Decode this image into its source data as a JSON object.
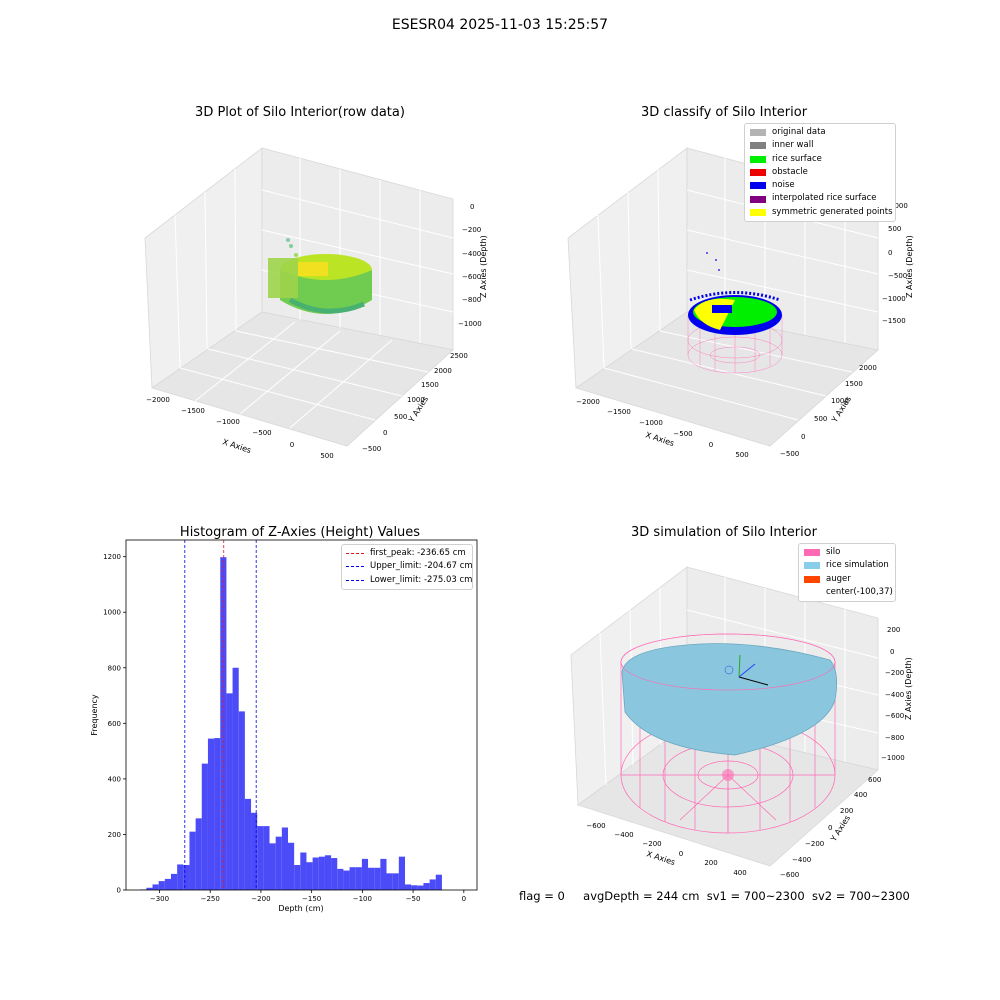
{
  "suptitle": "ESESR04 2025-11-03 15:25:57",
  "panels": {
    "raw": {
      "title": "3D Plot of Silo Interior(row data)",
      "xlabel": "X Axies",
      "ylabel": "Y Axies",
      "zlabel": "Z Axies (Depth)",
      "xticks": [
        "−2000",
        "−1500",
        "−1000",
        "−500",
        "0",
        "500"
      ],
      "yticks": [
        "−500",
        "0",
        "500",
        "1000",
        "1500",
        "2000",
        "2500"
      ],
      "zticks": [
        "0",
        "−200",
        "−400",
        "−600",
        "−800",
        "−1000"
      ]
    },
    "classify": {
      "title": "3D classify of Silo Interior",
      "xlabel": "X Axies",
      "ylabel": "Y Axies",
      "zlabel": "Z Axies (Depth)",
      "xticks": [
        "−2000",
        "−1500",
        "−1000",
        "−500",
        "0",
        "500"
      ],
      "yticks": [
        "−500",
        "0",
        "500",
        "1000",
        "1500",
        "2000"
      ],
      "zticks": [
        "1000",
        "500",
        "0",
        "−500",
        "−1000",
        "−1500"
      ],
      "legend": [
        {
          "label": "original data",
          "color": "#b3b3b3"
        },
        {
          "label": "inner wall",
          "color": "#808080"
        },
        {
          "label": "rice surface",
          "color": "#00ee00"
        },
        {
          "label": "obstacle",
          "color": "#ee0000"
        },
        {
          "label": "noise",
          "color": "#0000ee"
        },
        {
          "label": "interpolated rice surface",
          "color": "#800080"
        },
        {
          "label": "symmetric generated points",
          "color": "#ffff00"
        }
      ]
    },
    "simulation": {
      "title": "3D simulation of Silo Interior",
      "xlabel": "X Axies",
      "ylabel": "Y Axies",
      "zlabel": "Z Axies (Depth)",
      "xticks": [
        "−600",
        "−400",
        "−200",
        "0",
        "200",
        "400"
      ],
      "yticks": [
        "−600",
        "−400",
        "−200",
        "0",
        "200",
        "400",
        "600"
      ],
      "zticks": [
        "200",
        "0",
        "−200",
        "−400",
        "−600",
        "−800",
        "−1000"
      ],
      "legend": [
        {
          "label": "silo",
          "color": "#ff69b4"
        },
        {
          "label": "rice simulation",
          "color": "#87ceeb"
        },
        {
          "label": "auger",
          "color": "#ff4500"
        },
        {
          "label": "center(-100,37)",
          "color": ""
        }
      ]
    }
  },
  "chart_data": [
    {
      "type": "bar",
      "title": "Histogram of Z-Axies (Height) Values",
      "xlabel": "Depth (cm)",
      "ylabel": "Frequency",
      "xlim": [
        -333,
        13
      ],
      "ylim": [
        0,
        1260
      ],
      "xticks": [
        -300,
        -250,
        -200,
        -150,
        -100,
        -50,
        0
      ],
      "xtick_labels": [
        "−300",
        "−250",
        "−200",
        "−150",
        "−100",
        "−50",
        "0"
      ],
      "yticks": [
        0,
        200,
        400,
        600,
        800,
        1000,
        1200
      ],
      "bar_color": "#4b4bf7",
      "bin_width": 6.07,
      "bin_start": -319.0,
      "values": [
        2,
        8,
        20,
        32,
        40,
        58,
        92,
        90,
        210,
        258,
        455,
        545,
        547,
        1198,
        708,
        800,
        643,
        328,
        278,
        230,
        230,
        168,
        192,
        225,
        170,
        90,
        135,
        100,
        117,
        120,
        125,
        115,
        76,
        70,
        82,
        82,
        112,
        80,
        80,
        112,
        60,
        60,
        120,
        20,
        17,
        16,
        25,
        38,
        55
      ],
      "vlines": [
        {
          "label": "first_peak: -236.65 cm",
          "x": -236.65,
          "color": "#e31a1c"
        },
        {
          "label": "Upper_limit: -204.67 cm",
          "x": -204.67,
          "color": "#0000ee"
        },
        {
          "label": "Lower_limit: -275.03 cm",
          "x": -275.03,
          "color": "#0000ee"
        }
      ]
    }
  ],
  "footer": {
    "flag": "flag = 0",
    "avg": "avgDepth = 244 cm",
    "sv1": "sv1 = 700~2300",
    "sv2": "sv2 = 700~2300"
  }
}
